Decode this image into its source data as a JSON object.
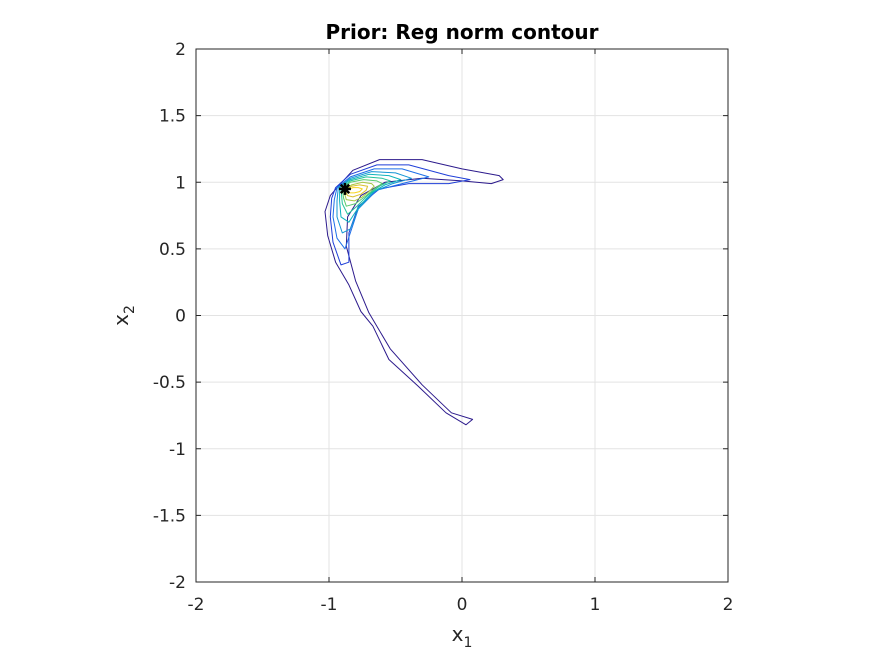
{
  "chart_data": {
    "type": "contour",
    "title": "Prior: Reg norm contour",
    "xlabel": {
      "base": "x",
      "sub": "1"
    },
    "ylabel": {
      "base": "x",
      "sub": "2"
    },
    "xlim": [
      -2,
      2
    ],
    "ylim": [
      -2,
      2
    ],
    "xticks": [
      -2,
      -1,
      0,
      1,
      2
    ],
    "yticks": [
      -2,
      -1.5,
      -1,
      -0.5,
      0,
      0.5,
      1,
      1.5,
      2
    ],
    "xtick_labels": [
      "-2",
      "-1",
      "0",
      "1",
      "2"
    ],
    "ytick_labels": [
      "-2",
      "-1.5",
      "-1",
      "-0.5",
      "0",
      "0.5",
      "1",
      "1.5",
      "2"
    ],
    "grid": true,
    "box": true,
    "colormap": [
      "#2c1a8c",
      "#1f3fd8",
      "#1c6ee8",
      "#1596d4",
      "#0fb3bc",
      "#22c39a",
      "#5bcb6d",
      "#a5c744",
      "#dcc02f",
      "#f7d51f"
    ],
    "contour_levels": [
      {
        "color": "#2c1a8c",
        "points": [
          [
            -0.93,
            0.97
          ],
          [
            -0.82,
            1.09
          ],
          [
            -0.62,
            1.17
          ],
          [
            -0.3,
            1.17
          ],
          [
            0.0,
            1.1
          ],
          [
            0.28,
            1.05
          ],
          [
            0.31,
            1.02
          ],
          [
            0.22,
            0.99
          ],
          [
            0.0,
            1.01
          ],
          [
            -0.3,
            1.03
          ],
          [
            -0.58,
            1.0
          ],
          [
            -0.76,
            0.9
          ],
          [
            -0.86,
            0.74
          ],
          [
            -0.87,
            0.52
          ],
          [
            -0.8,
            0.26
          ],
          [
            -0.7,
            0.02
          ],
          [
            -0.54,
            -0.25
          ],
          [
            -0.3,
            -0.52
          ],
          [
            -0.08,
            -0.73
          ],
          [
            0.08,
            -0.78
          ],
          [
            0.03,
            -0.82
          ],
          [
            -0.12,
            -0.73
          ],
          [
            -0.33,
            -0.53
          ],
          [
            -0.55,
            -0.33
          ],
          [
            -0.67,
            -0.08
          ],
          [
            -0.76,
            0.03
          ],
          [
            -0.85,
            0.23
          ],
          [
            -0.95,
            0.4
          ],
          [
            -1.01,
            0.6
          ],
          [
            -1.03,
            0.78
          ],
          [
            -0.99,
            0.9
          ]
        ]
      },
      {
        "color": "#1f3fd8",
        "points": [
          [
            -0.95,
            0.96
          ],
          [
            -0.84,
            1.06
          ],
          [
            -0.64,
            1.13
          ],
          [
            -0.4,
            1.13
          ],
          [
            -0.1,
            1.05
          ],
          [
            0.06,
            1.02
          ],
          [
            -0.1,
            0.99
          ],
          [
            -0.4,
            0.99
          ],
          [
            -0.62,
            0.95
          ],
          [
            -0.78,
            0.82
          ],
          [
            -0.85,
            0.62
          ],
          [
            -0.85,
            0.4
          ],
          [
            -0.91,
            0.38
          ],
          [
            -0.97,
            0.55
          ],
          [
            -0.99,
            0.74
          ],
          [
            -0.98,
            0.88
          ]
        ]
      },
      {
        "color": "#1c6ee8",
        "points": [
          [
            -0.94,
            0.96
          ],
          [
            -0.84,
            1.04
          ],
          [
            -0.66,
            1.1
          ],
          [
            -0.45,
            1.1
          ],
          [
            -0.25,
            1.04
          ],
          [
            -0.45,
            0.99
          ],
          [
            -0.64,
            0.94
          ],
          [
            -0.78,
            0.8
          ],
          [
            -0.84,
            0.62
          ],
          [
            -0.88,
            0.5
          ],
          [
            -0.94,
            0.58
          ],
          [
            -0.97,
            0.74
          ],
          [
            -0.96,
            0.87
          ]
        ]
      },
      {
        "color": "#1596d4",
        "points": [
          [
            -0.93,
            0.96
          ],
          [
            -0.84,
            1.03
          ],
          [
            -0.68,
            1.08
          ],
          [
            -0.5,
            1.07
          ],
          [
            -0.38,
            1.03
          ],
          [
            -0.52,
            0.99
          ],
          [
            -0.66,
            0.93
          ],
          [
            -0.78,
            0.8
          ],
          [
            -0.84,
            0.65
          ],
          [
            -0.9,
            0.62
          ],
          [
            -0.94,
            0.74
          ],
          [
            -0.94,
            0.86
          ]
        ]
      },
      {
        "color": "#0fb3bc",
        "points": [
          [
            -0.92,
            0.96
          ],
          [
            -0.84,
            1.02
          ],
          [
            -0.7,
            1.06
          ],
          [
            -0.55,
            1.05
          ],
          [
            -0.46,
            1.02
          ],
          [
            -0.58,
            0.98
          ],
          [
            -0.68,
            0.92
          ],
          [
            -0.78,
            0.81
          ],
          [
            -0.85,
            0.7
          ],
          [
            -0.91,
            0.74
          ],
          [
            -0.92,
            0.86
          ]
        ]
      },
      {
        "color": "#22c39a",
        "points": [
          [
            -0.91,
            0.95
          ],
          [
            -0.84,
            1.01
          ],
          [
            -0.72,
            1.04
          ],
          [
            -0.6,
            1.03
          ],
          [
            -0.54,
            1.01
          ],
          [
            -0.62,
            0.97
          ],
          [
            -0.7,
            0.91
          ],
          [
            -0.79,
            0.82
          ],
          [
            -0.86,
            0.76
          ],
          [
            -0.9,
            0.84
          ]
        ]
      },
      {
        "color": "#5bcb6d",
        "points": [
          [
            -0.9,
            0.95
          ],
          [
            -0.84,
            1.0
          ],
          [
            -0.74,
            1.02
          ],
          [
            -0.64,
            1.01
          ],
          [
            -0.6,
            0.99
          ],
          [
            -0.66,
            0.95
          ],
          [
            -0.72,
            0.9
          ],
          [
            -0.8,
            0.84
          ],
          [
            -0.87,
            0.82
          ],
          [
            -0.89,
            0.88
          ]
        ]
      },
      {
        "color": "#a5c744",
        "points": [
          [
            -0.89,
            0.94
          ],
          [
            -0.83,
            0.98
          ],
          [
            -0.75,
            1.0
          ],
          [
            -0.68,
            0.99
          ],
          [
            -0.66,
            0.97
          ],
          [
            -0.7,
            0.93
          ],
          [
            -0.75,
            0.89
          ],
          [
            -0.81,
            0.86
          ],
          [
            -0.87,
            0.87
          ]
        ]
      },
      {
        "color": "#dcc02f",
        "points": [
          [
            -0.88,
            0.94
          ],
          [
            -0.83,
            0.97
          ],
          [
            -0.77,
            0.98
          ],
          [
            -0.71,
            0.97
          ],
          [
            -0.72,
            0.94
          ],
          [
            -0.76,
            0.91
          ],
          [
            -0.82,
            0.89
          ],
          [
            -0.86,
            0.9
          ]
        ]
      },
      {
        "color": "#f7d51f",
        "points": [
          [
            -0.87,
            0.94
          ],
          [
            -0.82,
            0.96
          ],
          [
            -0.78,
            0.96
          ],
          [
            -0.75,
            0.95
          ],
          [
            -0.77,
            0.93
          ],
          [
            -0.81,
            0.92
          ],
          [
            -0.85,
            0.92
          ]
        ]
      }
    ],
    "marker": {
      "x": -0.88,
      "y": 0.95,
      "symbol": "asterisk",
      "color": "#000000"
    }
  }
}
